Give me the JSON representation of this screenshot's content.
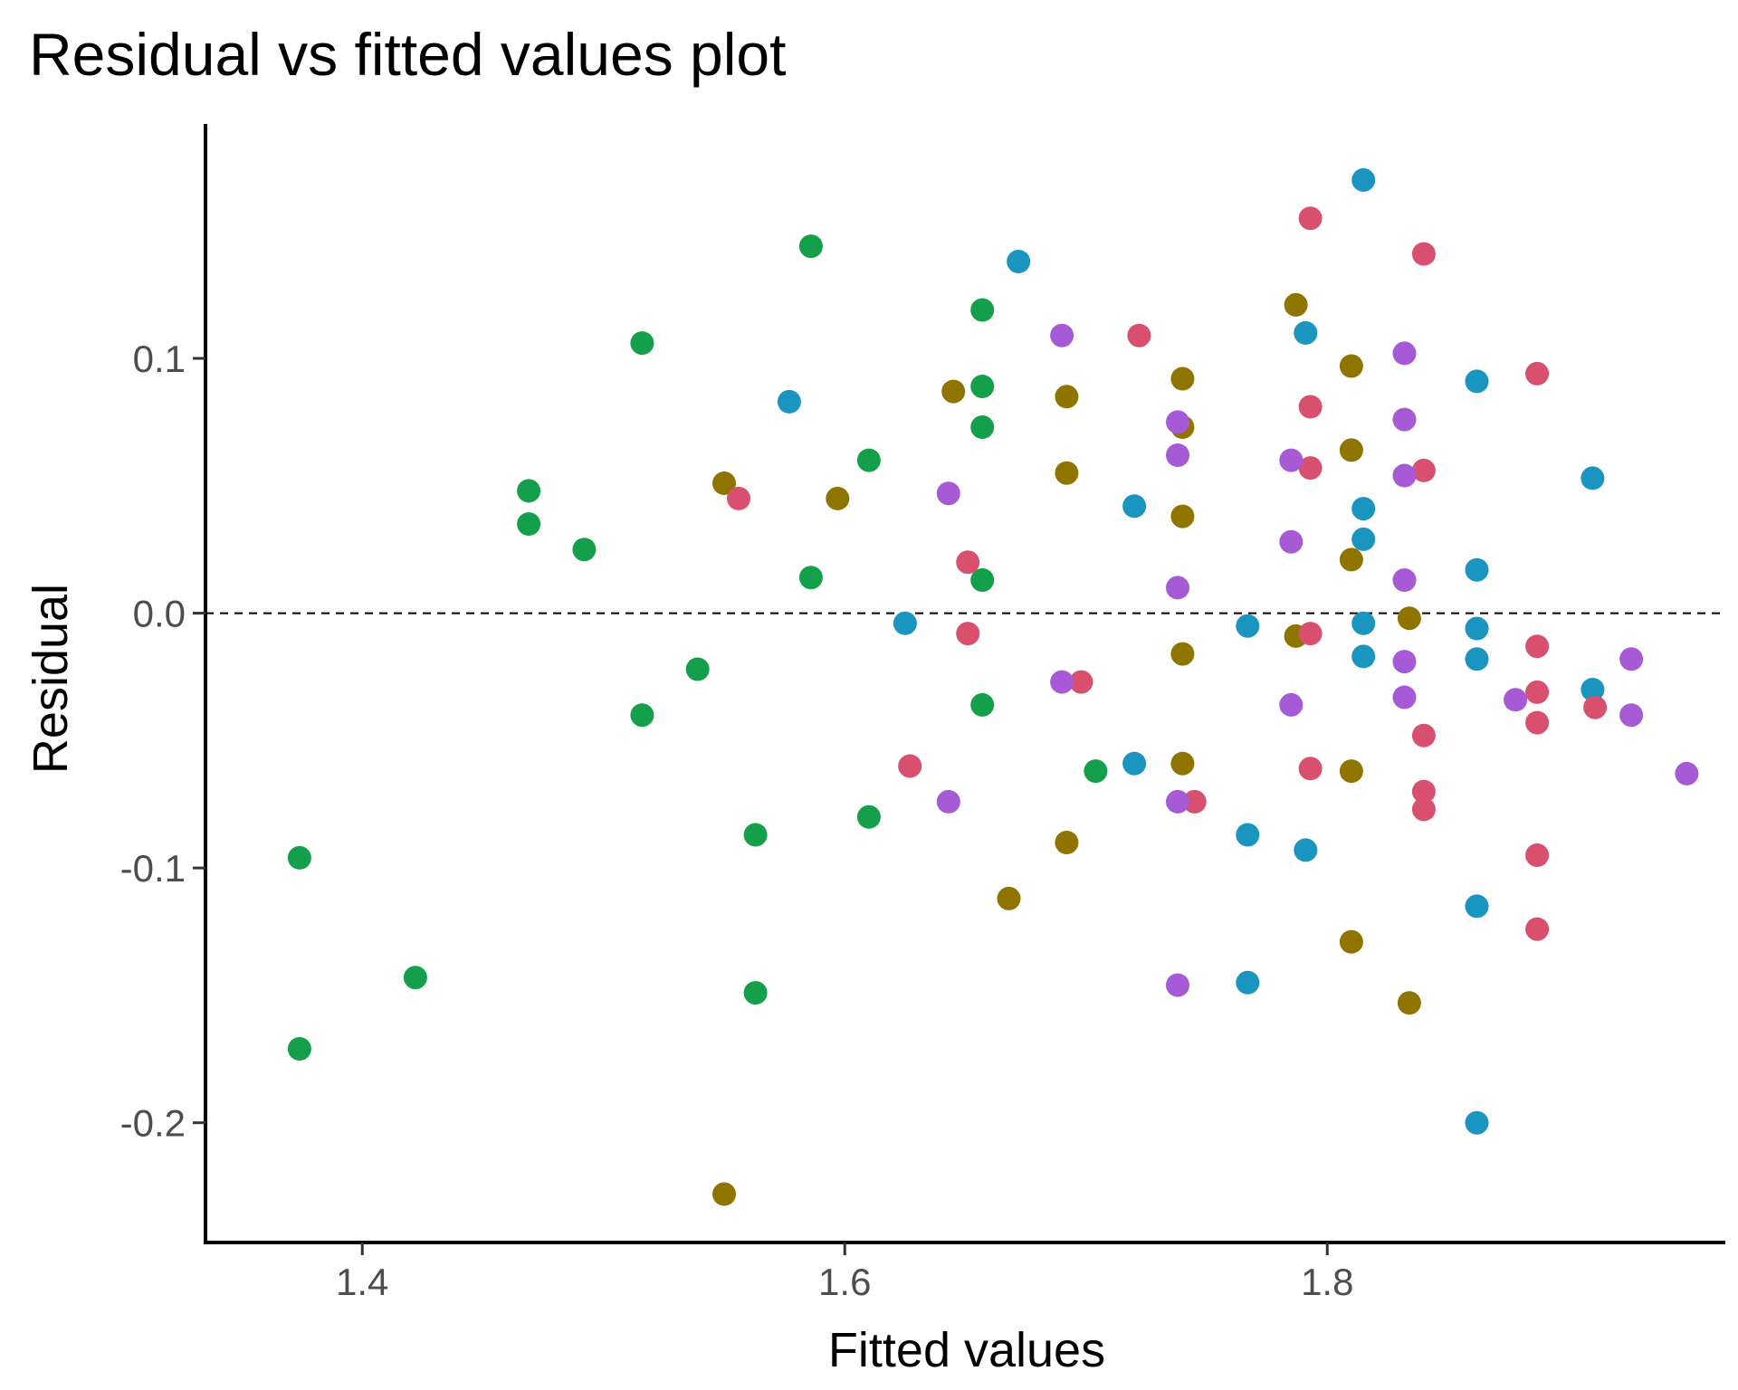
{
  "chart_data": {
    "type": "scatter",
    "title": "Residual vs fitted values plot",
    "xlabel": "Fitted values",
    "ylabel": "Residual",
    "xlim": [
      1.335,
      1.965
    ],
    "ylim": [
      -0.247,
      0.192
    ],
    "xticks": [
      {
        "value": 1.4,
        "label": "1.4"
      },
      {
        "value": 1.6,
        "label": "1.6"
      },
      {
        "value": 1.8,
        "label": "1.8"
      }
    ],
    "yticks": [
      {
        "value": 0.1,
        "label": "0.1"
      },
      {
        "value": 0.0,
        "label": "0.0"
      },
      {
        "value": -0.1,
        "label": "-0.1"
      },
      {
        "value": -0.2,
        "label": "-0.2"
      }
    ],
    "reference_line": {
      "y": 0.0,
      "style": "dashed"
    },
    "grid": false,
    "legend": "none",
    "series": [
      {
        "color": "#14a04b",
        "points": [
          [
            1.374,
            -0.096
          ],
          [
            1.374,
            -0.171
          ],
          [
            1.422,
            -0.143
          ],
          [
            1.469,
            0.048
          ],
          [
            1.469,
            0.035
          ],
          [
            1.492,
            0.025
          ],
          [
            1.516,
            0.106
          ],
          [
            1.516,
            -0.04
          ],
          [
            1.539,
            -0.022
          ],
          [
            1.563,
            -0.087
          ],
          [
            1.563,
            -0.149
          ],
          [
            1.586,
            0.144
          ],
          [
            1.586,
            0.014
          ],
          [
            1.61,
            0.06
          ],
          [
            1.61,
            -0.08
          ],
          [
            1.657,
            0.119
          ],
          [
            1.657,
            0.089
          ],
          [
            1.657,
            0.073
          ],
          [
            1.657,
            0.013
          ],
          [
            1.657,
            -0.036
          ],
          [
            1.704,
            -0.062
          ]
        ]
      },
      {
        "color": "#1a95c0",
        "points": [
          [
            1.577,
            0.083
          ],
          [
            1.625,
            -0.004
          ],
          [
            1.672,
            0.138
          ],
          [
            1.72,
            0.042
          ],
          [
            1.72,
            -0.059
          ],
          [
            1.767,
            -0.005
          ],
          [
            1.767,
            -0.087
          ],
          [
            1.767,
            -0.145
          ],
          [
            1.791,
            0.11
          ],
          [
            1.791,
            -0.093
          ],
          [
            1.815,
            0.17
          ],
          [
            1.815,
            0.041
          ],
          [
            1.815,
            0.029
          ],
          [
            1.815,
            -0.004
          ],
          [
            1.815,
            -0.017
          ],
          [
            1.862,
            0.091
          ],
          [
            1.862,
            0.017
          ],
          [
            1.862,
            -0.006
          ],
          [
            1.862,
            -0.018
          ],
          [
            1.862,
            -0.115
          ],
          [
            1.862,
            -0.2
          ],
          [
            1.91,
            0.053
          ],
          [
            1.91,
            -0.03
          ]
        ]
      },
      {
        "color": "#8f7400",
        "points": [
          [
            1.55,
            0.051
          ],
          [
            1.55,
            -0.228
          ],
          [
            1.597,
            0.045
          ],
          [
            1.645,
            0.087
          ],
          [
            1.668,
            -0.112
          ],
          [
            1.692,
            0.085
          ],
          [
            1.692,
            0.055
          ],
          [
            1.692,
            -0.09
          ],
          [
            1.74,
            0.092
          ],
          [
            1.74,
            0.073
          ],
          [
            1.74,
            0.038
          ],
          [
            1.74,
            -0.016
          ],
          [
            1.74,
            -0.059
          ],
          [
            1.787,
            0.121
          ],
          [
            1.787,
            -0.009
          ],
          [
            1.81,
            0.097
          ],
          [
            1.81,
            0.064
          ],
          [
            1.81,
            0.021
          ],
          [
            1.81,
            -0.062
          ],
          [
            1.81,
            -0.129
          ],
          [
            1.834,
            -0.002
          ],
          [
            1.834,
            -0.153
          ]
        ]
      },
      {
        "color": "#d9506f",
        "points": [
          [
            1.556,
            0.045
          ],
          [
            1.627,
            -0.06
          ],
          [
            1.651,
            0.02
          ],
          [
            1.651,
            -0.008
          ],
          [
            1.698,
            -0.027
          ],
          [
            1.722,
            0.109
          ],
          [
            1.745,
            -0.074
          ],
          [
            1.793,
            0.155
          ],
          [
            1.793,
            0.081
          ],
          [
            1.793,
            0.057
          ],
          [
            1.793,
            -0.008
          ],
          [
            1.793,
            -0.061
          ],
          [
            1.84,
            0.141
          ],
          [
            1.84,
            0.056
          ],
          [
            1.84,
            -0.048
          ],
          [
            1.84,
            -0.07
          ],
          [
            1.84,
            -0.077
          ],
          [
            1.887,
            0.094
          ],
          [
            1.887,
            -0.013
          ],
          [
            1.887,
            -0.031
          ],
          [
            1.887,
            -0.043
          ],
          [
            1.887,
            -0.095
          ],
          [
            1.887,
            -0.124
          ],
          [
            1.911,
            -0.037
          ]
        ]
      },
      {
        "color": "#a65ad6",
        "points": [
          [
            1.643,
            0.047
          ],
          [
            1.643,
            -0.074
          ],
          [
            1.69,
            0.109
          ],
          [
            1.69,
            -0.027
          ],
          [
            1.738,
            0.075
          ],
          [
            1.738,
            0.062
          ],
          [
            1.738,
            0.01
          ],
          [
            1.738,
            -0.074
          ],
          [
            1.738,
            -0.146
          ],
          [
            1.785,
            0.06
          ],
          [
            1.785,
            0.028
          ],
          [
            1.785,
            -0.036
          ],
          [
            1.832,
            0.102
          ],
          [
            1.832,
            0.076
          ],
          [
            1.832,
            0.054
          ],
          [
            1.832,
            0.013
          ],
          [
            1.832,
            -0.019
          ],
          [
            1.832,
            -0.033
          ],
          [
            1.878,
            -0.034
          ],
          [
            1.926,
            -0.018
          ],
          [
            1.926,
            -0.04
          ],
          [
            1.949,
            -0.063
          ]
        ]
      }
    ]
  }
}
